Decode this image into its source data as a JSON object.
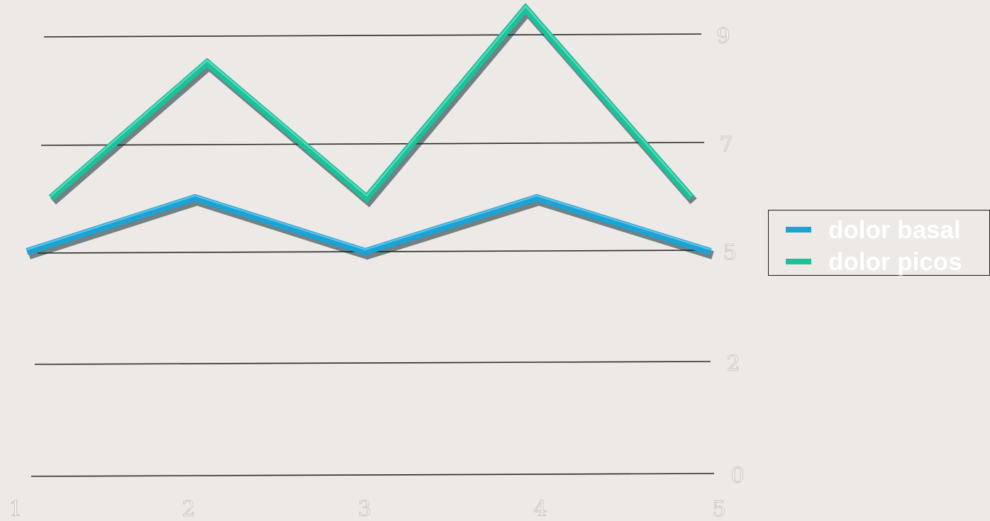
{
  "chart_data": {
    "type": "line",
    "x": [
      1,
      2,
      3,
      4,
      5
    ],
    "series": [
      {
        "name": "dolor basal",
        "values": [
          5,
          6,
          5,
          6,
          5
        ],
        "color": "#1aa3d6"
      },
      {
        "name": "dolor picos",
        "values": [
          6,
          8.5,
          6,
          9.5,
          6
        ],
        "color": "#19c39a"
      }
    ],
    "y_ticks": [
      "0",
      "2",
      "5",
      "7",
      "9"
    ],
    "x_ticks": [
      "1",
      "2",
      "3",
      "4",
      "5"
    ],
    "ylim": [
      0,
      10
    ],
    "grid": true,
    "legend_position": "right"
  }
}
